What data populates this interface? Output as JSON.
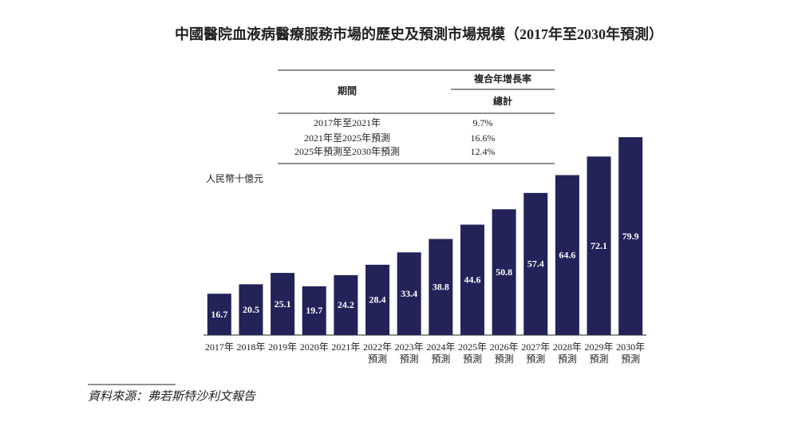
{
  "chart_data": {
    "type": "bar",
    "title": "中國醫院血液病醫療服務市場的歷史及預測市場規模（2017年至2030年預測）",
    "y_label": "人民幣十億元",
    "categories": [
      "2017年",
      "2018年",
      "2019年",
      "2020年",
      "2021年",
      "2022年",
      "2023年",
      "2024年",
      "2025年",
      "2026年",
      "2027年",
      "2028年",
      "2029年",
      "2030年"
    ],
    "category_notes": [
      null,
      null,
      null,
      null,
      null,
      "預測",
      "預測",
      "預測",
      "預測",
      "預測",
      "預測",
      "預測",
      "預測",
      "預測"
    ],
    "values": [
      16.7,
      20.5,
      25.1,
      19.7,
      24.2,
      28.4,
      33.4,
      38.8,
      44.6,
      50.8,
      57.4,
      64.6,
      72.1,
      79.9
    ],
    "color": "#23235a"
  },
  "table": {
    "header": {
      "period": "期間",
      "cagr": "複合年增長率",
      "total": "總計"
    },
    "rows": [
      [
        "2017年至2021年",
        "9.7%"
      ],
      [
        "2021年至2025年預測",
        "16.6%"
      ],
      [
        "2025年預測至2030年預測",
        "12.4%"
      ]
    ]
  },
  "source": "資料來源：弗若斯特沙利文報告"
}
